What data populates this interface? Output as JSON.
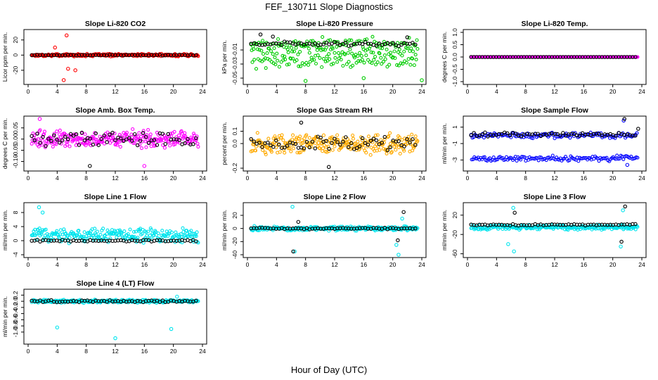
{
  "figure": {
    "title": "FEF_130711  Slope Diagnostics",
    "xlabel": "Hour of Day (UTC)"
  },
  "chart_data": [
    {
      "type": "scatter",
      "title": "Slope Li-820 CO2",
      "ylabel": "Licor ppm per min.",
      "xlim": [
        0,
        24
      ],
      "ylim": [
        -35,
        30
      ],
      "xticks": [
        0,
        4,
        8,
        12,
        16,
        20,
        24
      ],
      "yticks": [
        -20,
        0,
        20
      ],
      "ytick_labels": [
        "-20",
        "0",
        "20"
      ],
      "colors": {
        "primary": "#ff0000",
        "secondary": "#000000"
      },
      "primary": {
        "center": 0,
        "spread": 2,
        "outliers": [
          [
            5.3,
            26
          ],
          [
            5.5,
            -18
          ],
          [
            6.5,
            -20
          ],
          [
            4.9,
            -33
          ],
          [
            3.7,
            10
          ]
        ]
      },
      "secondary": {
        "center": 0,
        "spread": 0.6
      }
    },
    {
      "type": "scatter",
      "title": "Slope Li-820 Pressure",
      "ylabel": "kPa per min.",
      "xlim": [
        0,
        24
      ],
      "ylim": [
        -0.055,
        0.015
      ],
      "xticks": [
        0,
        4,
        8,
        12,
        16,
        20,
        24
      ],
      "yticks": [
        -0.05,
        -0.03,
        -0.01
      ],
      "ytick_labels": [
        "-0.05",
        "-0.03",
        "-0.01"
      ],
      "colors": {
        "primary": "#00cc00",
        "secondary": "#000000"
      },
      "primary": {
        "center": -0.014,
        "spread": 0.012,
        "bands": [
          -0.001,
          -0.012,
          -0.026
        ],
        "outliers": [
          [
            8,
            -0.054
          ],
          [
            16,
            -0.05
          ],
          [
            24,
            -0.053
          ]
        ]
      },
      "secondary": {
        "center": -0.001,
        "spread": 0.004,
        "outliers": [
          [
            1.8,
            0.012
          ],
          [
            3.5,
            0.009
          ],
          [
            22,
            0.008
          ]
        ]
      }
    },
    {
      "type": "scatter",
      "title": "Slope Li-820 Temp.",
      "ylabel": "degrees C per min.",
      "xlim": [
        0,
        24
      ],
      "ylim": [
        -1.0,
        1.0
      ],
      "xticks": [
        0,
        4,
        8,
        12,
        16,
        20,
        24
      ],
      "yticks": [
        -1.0,
        -0.5,
        0.0,
        0.5,
        1.0
      ],
      "ytick_labels": [
        "-1.0",
        "-0.5",
        "0.0",
        "0.5",
        "1.0"
      ],
      "colors": {
        "primary": "#ff00ff",
        "secondary": "#000000"
      },
      "primary": {
        "center": 0,
        "spread": 0
      },
      "secondary": {
        "center": 0,
        "spread": 0
      }
    },
    {
      "type": "scatter",
      "title": "Slope Amb. Box Temp.",
      "ylabel": "degrees C per min.",
      "xlim": [
        0,
        24
      ],
      "ylim": [
        -0.13,
        0.09
      ],
      "xticks": [
        0,
        4,
        8,
        12,
        16,
        20,
        24
      ],
      "yticks": [
        -0.1,
        -0.05,
        0.0,
        0.05
      ],
      "ytick_labels": [
        "-0.10",
        "-0.05",
        "0.00",
        "0.05"
      ],
      "colors": {
        "primary": "#ff00ff",
        "secondary": "#000000"
      },
      "primary": {
        "center": 0.0,
        "spread": 0.045,
        "outliers": [
          [
            1.6,
            0.09
          ],
          [
            16,
            -0.12
          ]
        ]
      },
      "secondary": {
        "center": 0.0,
        "spread": 0.04,
        "outliers": [
          [
            8.5,
            -0.12
          ]
        ]
      }
    },
    {
      "type": "scatter",
      "title": "Slope Gas Stream RH",
      "ylabel": "percent per min.",
      "xlim": [
        0,
        24
      ],
      "ylim": [
        -0.2,
        0.2
      ],
      "xticks": [
        0,
        4,
        8,
        12,
        16,
        20,
        24
      ],
      "yticks": [
        -0.2,
        0.0,
        0.1
      ],
      "ytick_labels": [
        "-0.2",
        "0.0",
        "0.1"
      ],
      "colors": {
        "primary": "#ffaa00",
        "secondary": "#000000"
      },
      "primary": {
        "center": 0.0,
        "spread": 0.1
      },
      "secondary": {
        "center": 0.0,
        "spread": 0.07,
        "outliers": [
          [
            7.4,
            0.17
          ],
          [
            11.2,
            -0.19
          ]
        ]
      }
    },
    {
      "type": "scatter",
      "title": "Slope Sample Flow",
      "ylabel": "ml/min per min.",
      "xlim": [
        0,
        24
      ],
      "ylim": [
        -4,
        2
      ],
      "xticks": [
        0,
        4,
        8,
        12,
        16,
        20,
        24
      ],
      "yticks": [
        -3,
        -1,
        1
      ],
      "ytick_labels": [
        "-3",
        "-1",
        "1"
      ],
      "colors": {
        "primary": "#0000ff",
        "secondary": "#000000"
      },
      "primary": {
        "center": -0.3,
        "spread": 0.4,
        "bands": [
          0.0,
          -2.8
        ],
        "outliers": [
          [
            21.5,
            1.8
          ],
          [
            22,
            -3.6
          ]
        ]
      },
      "secondary": {
        "center": 0.1,
        "spread": 0.3,
        "outliers": [
          [
            21.6,
            2.0
          ],
          [
            23.5,
            0.8
          ]
        ]
      }
    },
    {
      "type": "scatter",
      "title": "Slope Line 1 Flow",
      "ylabel": "ml/min per min.",
      "xlim": [
        0,
        24
      ],
      "ylim": [
        -4,
        10
      ],
      "xticks": [
        0,
        4,
        8,
        12,
        16,
        20,
        24
      ],
      "yticks": [
        -4,
        0,
        4,
        8
      ],
      "ytick_labels": [
        "-4",
        "0",
        "4",
        "8"
      ],
      "colors": {
        "primary": "#00e5ee",
        "secondary": "#000000"
      },
      "primary": {
        "center": 1.5,
        "spread": 2.5,
        "outliers": [
          [
            1.5,
            9.5
          ],
          [
            2,
            8
          ]
        ]
      },
      "secondary": {
        "center": 0,
        "spread": 0.3
      }
    },
    {
      "type": "scatter",
      "title": "Slope Line 2 Flow",
      "ylabel": "ml/min per min.",
      "xlim": [
        0,
        24
      ],
      "ylim": [
        -40,
        35
      ],
      "xticks": [
        0,
        4,
        8,
        12,
        16,
        20,
        24
      ],
      "yticks": [
        -40,
        -20,
        0,
        20
      ],
      "ytick_labels": [
        "-40",
        "-20",
        "0",
        "20"
      ],
      "colors": {
        "primary": "#00e5ee",
        "secondary": "#000000"
      },
      "primary": {
        "center": 0,
        "spread": 4,
        "outliers": [
          [
            6.2,
            33
          ],
          [
            6.5,
            -35
          ],
          [
            20.8,
            -40
          ],
          [
            21.3,
            15
          ],
          [
            20.5,
            -25
          ]
        ]
      },
      "secondary": {
        "center": 0,
        "spread": 1.5,
        "outliers": [
          [
            6.3,
            -35
          ],
          [
            20.7,
            -18
          ],
          [
            21.5,
            25
          ],
          [
            7,
            10
          ]
        ]
      }
    },
    {
      "type": "scatter",
      "title": "Slope Line 3 Flow",
      "ylabel": "ml/min per min.",
      "xlim": [
        0,
        24
      ],
      "ylim": [
        -62,
        40
      ],
      "xticks": [
        0,
        4,
        8,
        12,
        16,
        20,
        24
      ],
      "yticks": [
        -60,
        -20,
        20
      ],
      "ytick_labels": [
        "-60",
        "-20",
        "20"
      ],
      "colors": {
        "primary": "#00e5ee",
        "secondary": "#000000"
      },
      "primary": {
        "center": -5,
        "spread": 6,
        "outliers": [
          [
            6.3,
            35
          ],
          [
            6.4,
            -55
          ],
          [
            21.4,
            30
          ],
          [
            21.1,
            -45
          ],
          [
            5.6,
            -40
          ]
        ]
      },
      "secondary": {
        "center": 0,
        "spread": 2,
        "outliers": [
          [
            21.7,
            38
          ],
          [
            21.2,
            -35
          ],
          [
            6.5,
            25
          ]
        ]
      }
    },
    {
      "type": "scatter",
      "title": "Slope Line 4 (LT) Flow",
      "ylabel": "ml/min per min.",
      "xlim": [
        0,
        24
      ],
      "ylim": [
        -1.3,
        0.3
      ],
      "xticks": [
        0,
        4,
        8,
        12,
        16,
        20,
        24
      ],
      "yticks": [
        -1.0,
        -0.8,
        -0.6,
        -0.4,
        -0.2,
        0.0,
        0.2
      ],
      "ytick_labels": [
        "-1.0",
        "-0.8",
        "-0.6",
        "-0.4",
        "-0.2",
        "0.0",
        "0.2"
      ],
      "colors": {
        "primary": "#00e5ee",
        "secondary": "#000000"
      },
      "primary": {
        "center": 0,
        "spread": 0.06,
        "outliers": [
          [
            4,
            -0.85
          ],
          [
            12,
            -1.2
          ],
          [
            19.7,
            -0.9
          ],
          [
            20.5,
            0.15
          ]
        ]
      },
      "secondary": {
        "center": 0,
        "spread": 0.04
      }
    }
  ]
}
